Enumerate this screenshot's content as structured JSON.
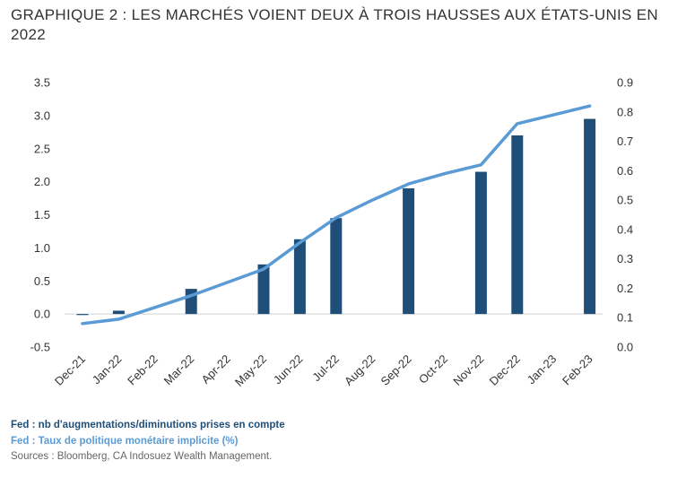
{
  "title": "GRAPHIQUE 2 : LES MARCHÉS VOIENT DEUX À TROIS HAUSSES AUX ÉTATS-UNIS EN 2022",
  "legend": {
    "bars": "Fed : nb d'augmentations/diminutions prises en compte",
    "line": "Fed : Taux de politique monétaire implicite (%)"
  },
  "source": "Sources : Bloomberg, CA Indosuez Wealth Management.",
  "colors": {
    "bars": "#1f4e79",
    "line": "#5b9bd5"
  },
  "chart_data": {
    "type": "bar",
    "categories": [
      "Dec-21",
      "Jan-22",
      "Feb-22",
      "Mar-22",
      "Apr-22",
      "May-22",
      "Jun-22",
      "Jul-22",
      "Aug-22",
      "Sep-22",
      "Oct-22",
      "Nov-22",
      "Dec-22",
      "Jan-23",
      "Feb-23"
    ],
    "series": [
      {
        "type": "bar",
        "axis": "left",
        "name": "Fed : nb d'augmentations/diminutions prises en compte",
        "values": [
          0.0,
          0.05,
          null,
          0.38,
          null,
          0.75,
          1.13,
          1.45,
          null,
          1.9,
          null,
          2.15,
          2.7,
          null,
          2.95
        ]
      },
      {
        "type": "line",
        "axis": "right",
        "name": "Fed : Taux de politique monétaire implicite (%)",
        "values": [
          0.08,
          0.095,
          0.135,
          0.175,
          0.22,
          0.265,
          0.355,
          0.44,
          0.5,
          0.555,
          0.59,
          0.62,
          0.76,
          0.79,
          0.82
        ]
      }
    ],
    "y_left": {
      "min": -0.5,
      "max": 3.5,
      "ticks": [
        "-0.5",
        "0.0",
        "0.5",
        "1.0",
        "1.5",
        "2.0",
        "2.5",
        "3.0",
        "3.5"
      ]
    },
    "y_right": {
      "min": 0.0,
      "max": 0.9,
      "ticks": [
        "0.0",
        "0.1",
        "0.2",
        "0.3",
        "0.4",
        "0.5",
        "0.6",
        "0.7",
        "0.8",
        "0.9"
      ]
    },
    "grid": false
  }
}
